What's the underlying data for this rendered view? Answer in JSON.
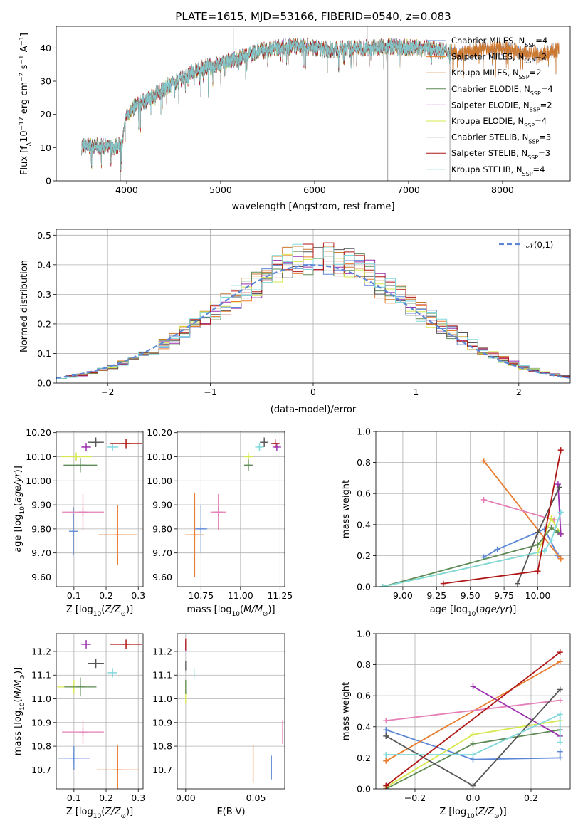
{
  "chart_data": [
    {
      "type": "line",
      "title": "PLATE=1615, MJD=53166, FIBERID=0540, z=0.083",
      "xlabel": "wavelength [Angstrom, rest frame]",
      "ylabel": "Flux [f_λ10^-17 erg cm^-2 s^-1 A^-1]",
      "xlim": [
        3250,
        8720
      ],
      "ylim": [
        0,
        46.5
      ],
      "xticks": [
        4000,
        5000,
        6000,
        7000,
        8000
      ],
      "yticks": [
        0,
        10,
        20,
        30,
        40
      ],
      "legend_position": "right",
      "series": [
        {
          "name": "Chabrier MILES, N_SSP=4",
          "color": "#5b87d6"
        },
        {
          "name": "Salpeter MILES, N_SSP=2",
          "color": "#e97c2e"
        },
        {
          "name": "Kroupa MILES, N_SSP=2",
          "color": "#c8792e"
        },
        {
          "name": "Chabrier ELODIE, N_SSP=4",
          "color": "#5d8a55"
        },
        {
          "name": "Salpeter ELODIE, N_SSP=2",
          "color": "#9b2fae"
        },
        {
          "name": "Kroupa ELODIE, N_SSP=4",
          "color": "#d7e84c"
        },
        {
          "name": "Chabrier STELIB, N_SSP=3",
          "color": "#555555"
        },
        {
          "name": "Salpeter STELIB, N_SSP=3",
          "color": "#b01515"
        },
        {
          "name": "Kroupa STELIB, N_SSP=4",
          "color": "#7fd8dc"
        }
      ],
      "continuum": {
        "x": [
          3520,
          3700,
          3850,
          3950,
          4000,
          4100,
          4250,
          4400,
          4600,
          4800,
          5000,
          5200,
          5400,
          5600,
          5800,
          6000,
          6200,
          6500,
          6800,
          7000,
          7200,
          7400,
          7600,
          7800,
          8000,
          8200,
          8400,
          8600
        ],
        "y": [
          10.5,
          10.5,
          10,
          11,
          20,
          22.5,
          25,
          28,
          31,
          34,
          35,
          37,
          39,
          40,
          40.5,
          40,
          39.5,
          40,
          40.5,
          40,
          40,
          39,
          38.5,
          40,
          40,
          38.5,
          38,
          39.5
        ]
      },
      "line_features": [
        {
          "x": 3933,
          "y": 0
        },
        {
          "x": 5135,
          "y": 46
        },
        {
          "x": 6560,
          "y": 48
        },
        {
          "x": 6779,
          "y": 0
        },
        {
          "x": 7440,
          "y": 0
        }
      ]
    },
    {
      "type": "bar",
      "xlabel": "(data-model)/error",
      "ylabel": "Normed distribution",
      "xlim": [
        -2.5,
        2.5
      ],
      "ylim": [
        0,
        0.52
      ],
      "xticks": [
        -2,
        -1,
        0,
        1,
        2
      ],
      "yticks": [
        0.0,
        0.1,
        0.2,
        0.3,
        0.4,
        0.5
      ],
      "legend": [
        "𝒩(0,1)"
      ],
      "legend_position": "top-right",
      "bin_edges": [
        -2.5,
        -2.4,
        -2.3,
        -2.2,
        -2.1,
        -2.0,
        -1.9,
        -1.8,
        -1.7,
        -1.6,
        -1.5,
        -1.4,
        -1.3,
        -1.2,
        -1.1,
        -1.0,
        -0.9,
        -0.8,
        -0.7,
        -0.6,
        -0.5,
        -0.4,
        -0.3,
        -0.2,
        -0.1,
        0.0,
        0.1,
        0.2,
        0.3,
        0.4,
        0.5,
        0.6,
        0.7,
        0.8,
        0.9,
        1.0,
        1.1,
        1.2,
        1.3,
        1.4,
        1.5,
        1.6,
        1.7,
        1.8,
        1.9,
        2.0,
        2.1,
        2.2,
        2.3,
        2.4,
        2.5
      ],
      "density": [
        0.018,
        0.022,
        0.028,
        0.035,
        0.044,
        0.054,
        0.066,
        0.079,
        0.094,
        0.111,
        0.13,
        0.15,
        0.171,
        0.194,
        0.218,
        0.242,
        0.266,
        0.29,
        0.312,
        0.333,
        0.352,
        0.368,
        0.381,
        0.391,
        0.397,
        0.399,
        0.397,
        0.391,
        0.381,
        0.368,
        0.352,
        0.333,
        0.312,
        0.29,
        0.266,
        0.242,
        0.218,
        0.194,
        0.171,
        0.15,
        0.13,
        0.111,
        0.094,
        0.079,
        0.066,
        0.054,
        0.044,
        0.035,
        0.028,
        0.022
      ],
      "noise_seed": 11
    },
    {
      "type": "scatter",
      "xlabel": "Z [log10(Z/Z☉)]",
      "ylabel": "age  [log10(age/yr)]",
      "xlim": [
        0.045,
        0.315
      ],
      "ylim": [
        9.56,
        10.205
      ],
      "xticks": [
        0.1,
        0.2,
        0.3
      ],
      "yticks": [
        9.6,
        9.7,
        9.8,
        9.9,
        10.0,
        10.1,
        10.2
      ],
      "points": [
        {
          "x": 0.098,
          "y": 9.79,
          "xerr": 0.003,
          "yerr": 0.1,
          "color": "#5b87d6"
        },
        {
          "x": 0.236,
          "y": 9.775,
          "xerr": 0.06,
          "yerr": 0.125,
          "color": "#e97c2e"
        },
        {
          "x": 0.128,
          "y": 9.87,
          "xerr": 0.065,
          "yerr": 0.075,
          "color": "#e57fb7"
        },
        {
          "x": 0.107,
          "y": 10.1,
          "xerr": 0.048,
          "yerr": 0.015,
          "color": "#d7e84c"
        },
        {
          "x": 0.12,
          "y": 10.065,
          "xerr": 0.052,
          "yerr": 0.03,
          "color": "#5d8a55"
        },
        {
          "x": 0.138,
          "y": 10.14,
          "xerr": 0.015,
          "yerr": 0.015,
          "color": "#9b2fae"
        },
        {
          "x": 0.168,
          "y": 10.16,
          "xerr": 0.025,
          "yerr": 0.02,
          "color": "#555555"
        },
        {
          "x": 0.22,
          "y": 10.14,
          "xerr": 0.018,
          "yerr": 0.015,
          "color": "#7fd8dc"
        },
        {
          "x": 0.262,
          "y": 10.155,
          "xerr": 0.05,
          "yerr": 0.02,
          "color": "#b01515"
        }
      ]
    },
    {
      "type": "scatter",
      "xlabel": "mass [log10(M/M☉)]",
      "ylabel": "",
      "xlim": [
        10.6,
        11.28
      ],
      "ylim": [
        9.56,
        10.205
      ],
      "xticks": [
        10.75,
        11.0,
        11.25
      ],
      "yticks": [
        9.6,
        9.7,
        9.8,
        9.9,
        10.0,
        10.1,
        10.2
      ],
      "points": [
        {
          "x": 10.75,
          "y": 9.8,
          "xerr": 0.04,
          "yerr": 0.1,
          "color": "#5b87d6"
        },
        {
          "x": 10.71,
          "y": 9.775,
          "xerr": 0.06,
          "yerr": 0.175,
          "color": "#e97c2e"
        },
        {
          "x": 10.86,
          "y": 9.87,
          "xerr": 0.05,
          "yerr": 0.075,
          "color": "#e57fb7"
        },
        {
          "x": 11.05,
          "y": 10.1,
          "xerr": 0.02,
          "yerr": 0.015,
          "color": "#d7e84c"
        },
        {
          "x": 11.05,
          "y": 10.065,
          "xerr": 0.02,
          "yerr": 0.025,
          "color": "#5d8a55"
        },
        {
          "x": 11.23,
          "y": 10.14,
          "xerr": 0.01,
          "yerr": 0.015,
          "color": "#9b2fae"
        },
        {
          "x": 11.15,
          "y": 10.16,
          "xerr": 0.015,
          "yerr": 0.02,
          "color": "#555555"
        },
        {
          "x": 11.12,
          "y": 10.14,
          "xerr": 0.015,
          "yerr": 0.015,
          "color": "#7fd8dc"
        },
        {
          "x": 11.22,
          "y": 10.155,
          "xerr": 0.012,
          "yerr": 0.015,
          "color": "#b01515"
        }
      ]
    },
    {
      "type": "line",
      "xlabel": "age  [log10(age/yr)]",
      "ylabel": "mass weight",
      "xlim": [
        8.8,
        10.24
      ],
      "ylim": [
        0,
        1
      ],
      "xticks": [
        9.0,
        9.25,
        9.5,
        9.75,
        10.0
      ],
      "yticks": [
        0.0,
        0.2,
        0.4,
        0.6,
        0.8,
        1.0
      ],
      "series": [
        {
          "color": "#5b87d6",
          "x": [
            9.6,
            9.7,
            10.05,
            10.15
          ],
          "y": [
            0.19,
            0.24,
            0.37,
            0.2
          ]
        },
        {
          "color": "#e97c2e",
          "x": [
            9.6,
            10.17
          ],
          "y": [
            0.81,
            0.18
          ]
        },
        {
          "color": "#e57fb7",
          "x": [
            9.6,
            10.12
          ],
          "y": [
            0.56,
            0.43
          ]
        },
        {
          "color": "#d7e84c",
          "x": [
            8.85,
            10.0,
            10.1,
            10.17
          ],
          "y": [
            0.0,
            0.22,
            0.44,
            0.34
          ]
        },
        {
          "color": "#5d8a55",
          "x": [
            8.85,
            10.0,
            10.1,
            10.15
          ],
          "y": [
            0.0,
            0.27,
            0.38,
            0.35
          ]
        },
        {
          "color": "#9b2fae",
          "x": [
            10.15,
            10.17
          ],
          "y": [
            0.66,
            0.34
          ]
        },
        {
          "color": "#555555",
          "x": [
            9.85,
            10.0,
            10.16
          ],
          "y": [
            0.02,
            0.35,
            0.64
          ]
        },
        {
          "color": "#7fd8dc",
          "x": [
            8.85,
            10.05,
            10.1,
            10.17
          ],
          "y": [
            0.0,
            0.23,
            0.3,
            0.48
          ]
        },
        {
          "color": "#b01515",
          "x": [
            9.3,
            10.0,
            10.17
          ],
          "y": [
            0.02,
            0.1,
            0.88
          ]
        }
      ]
    },
    {
      "type": "scatter",
      "xlabel": "Z [log10(Z/Z☉)]",
      "ylabel": "mass [log10(M/M☉)]",
      "xlim": [
        0.045,
        0.315
      ],
      "ylim": [
        10.62,
        11.275
      ],
      "xticks": [
        0.1,
        0.2,
        0.3
      ],
      "yticks": [
        10.7,
        10.8,
        10.9,
        11.0,
        11.1,
        11.2
      ],
      "points": [
        {
          "x": 0.1,
          "y": 10.75,
          "xerr": 0.05,
          "yerr": 0.05,
          "color": "#5b87d6"
        },
        {
          "x": 0.236,
          "y": 10.7,
          "xerr": 0.065,
          "yerr": 0.105,
          "color": "#e97c2e"
        },
        {
          "x": 0.128,
          "y": 10.86,
          "xerr": 0.065,
          "yerr": 0.05,
          "color": "#e57fb7"
        },
        {
          "x": 0.1,
          "y": 11.05,
          "xerr": 0.052,
          "yerr": 0.03,
          "color": "#d7e84c"
        },
        {
          "x": 0.12,
          "y": 11.05,
          "xerr": 0.05,
          "yerr": 0.04,
          "color": "#5d8a55"
        },
        {
          "x": 0.138,
          "y": 11.23,
          "xerr": 0.015,
          "yerr": 0.015,
          "color": "#9b2fae"
        },
        {
          "x": 0.168,
          "y": 11.15,
          "xerr": 0.025,
          "yerr": 0.02,
          "color": "#555555"
        },
        {
          "x": 0.22,
          "y": 11.11,
          "xerr": 0.015,
          "yerr": 0.02,
          "color": "#7fd8dc"
        },
        {
          "x": 0.262,
          "y": 11.23,
          "xerr": 0.05,
          "yerr": 0.02,
          "color": "#b01515"
        }
      ]
    },
    {
      "type": "scatter",
      "xlabel": "E(B-V)",
      "ylabel": "",
      "xlim": [
        -0.006,
        0.0705
      ],
      "ylim": [
        10.62,
        11.275
      ],
      "xticks": [
        0.0,
        0.05
      ],
      "yticks": [
        10.7,
        10.8,
        10.9,
        11.0,
        11.1,
        11.2
      ],
      "points": [
        {
          "x": 0.061,
          "y": 10.71,
          "xerr": 0.0,
          "yerr": 0.05,
          "color": "#5b87d6"
        },
        {
          "x": 0.048,
          "y": 10.725,
          "xerr": 0.0,
          "yerr": 0.08,
          "color": "#e97c2e"
        },
        {
          "x": 0.069,
          "y": 10.86,
          "xerr": 0.0,
          "yerr": 0.05,
          "color": "#e57fb7"
        },
        {
          "x": 0.0,
          "y": 11.02,
          "xerr": 0.0,
          "yerr": 0.04,
          "color": "#d7e84c"
        },
        {
          "x": 0.0,
          "y": 11.05,
          "xerr": 0.0,
          "yerr": 0.03,
          "color": "#5d8a55"
        },
        {
          "x": 0.0,
          "y": 11.22,
          "xerr": 0.0,
          "yerr": 0.02,
          "color": "#9b2fae"
        },
        {
          "x": 0.0,
          "y": 11.14,
          "xerr": 0.0,
          "yerr": 0.02,
          "color": "#555555"
        },
        {
          "x": 0.006,
          "y": 11.11,
          "xerr": 0.0,
          "yerr": 0.02,
          "color": "#7fd8dc"
        },
        {
          "x": 0.0,
          "y": 11.23,
          "xerr": 0.0,
          "yerr": 0.025,
          "color": "#b01515"
        }
      ]
    },
    {
      "type": "line",
      "xlabel": "Z [log10(Z/Z☉)]",
      "ylabel": "mass weight",
      "xlim": [
        -0.335,
        0.335
      ],
      "ylim": [
        0,
        1
      ],
      "xticks": [
        -0.2,
        0.0,
        0.2
      ],
      "yticks": [
        0.0,
        0.2,
        0.4,
        0.6,
        0.8,
        1.0
      ],
      "series": [
        {
          "color": "#5b87d6",
          "x": [
            -0.3,
            0.0,
            0.3,
            0.3
          ],
          "y": [
            0.38,
            0.19,
            0.2,
            0.24
          ]
        },
        {
          "color": "#e97c2e",
          "x": [
            -0.3,
            0.3
          ],
          "y": [
            0.18,
            0.82
          ]
        },
        {
          "color": "#e57fb7",
          "x": [
            -0.3,
            0.3
          ],
          "y": [
            0.44,
            0.57
          ]
        },
        {
          "color": "#d7e84c",
          "x": [
            -0.3,
            0.0,
            0.3
          ],
          "y": [
            0.01,
            0.35,
            0.44
          ]
        },
        {
          "color": "#5d8a55",
          "x": [
            -0.3,
            0.0,
            0.3
          ],
          "y": [
            0.0,
            0.29,
            0.38
          ]
        },
        {
          "color": "#9b2fae",
          "x": [
            0.0,
            0.3
          ],
          "y": [
            0.66,
            0.34
          ]
        },
        {
          "color": "#555555",
          "x": [
            -0.3,
            0.0,
            0.3
          ],
          "y": [
            0.34,
            0.02,
            0.64
          ]
        },
        {
          "color": "#7fd8dc",
          "x": [
            -0.3,
            0.0,
            0.3,
            0.3
          ],
          "y": [
            0.22,
            0.22,
            0.48,
            0.3
          ]
        },
        {
          "color": "#b01515",
          "x": [
            -0.3,
            0.3
          ],
          "y": [
            0.02,
            0.88
          ]
        }
      ]
    }
  ]
}
